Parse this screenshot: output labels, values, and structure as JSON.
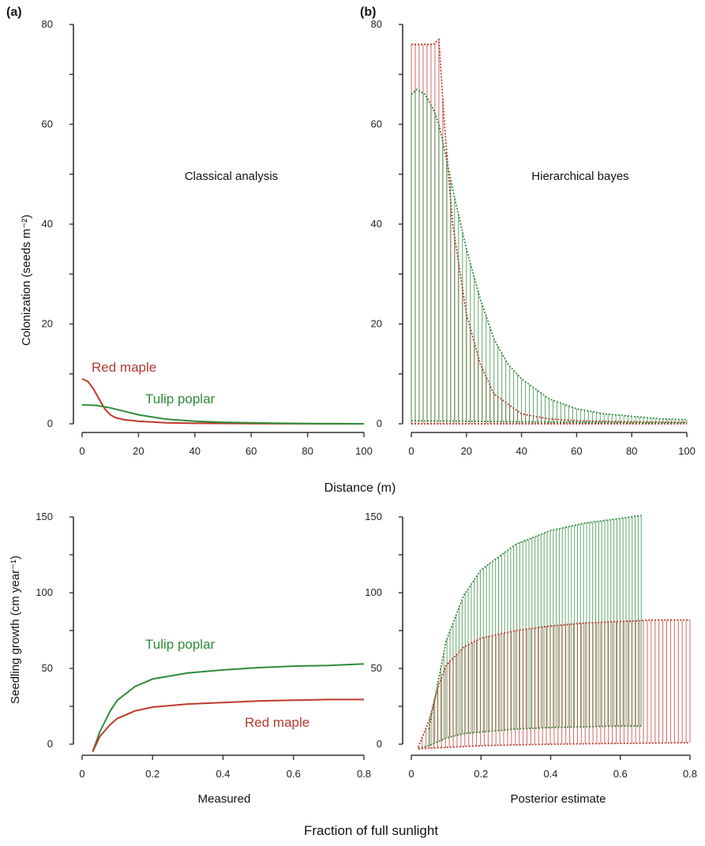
{
  "figure": {
    "shared_xlabel_top": "Distance (m)",
    "shared_xlabel_bottom": "Fraction of full sunlight",
    "colors": {
      "red_maple": "#c0392b",
      "tulip_poplar": "#2e8b3a",
      "axis": "#333333"
    }
  },
  "chart_data": [
    {
      "id": "a",
      "type": "line",
      "panel_label": "(a)",
      "annotation": "Classical analysis",
      "ylabel": "Colonization (seeds m⁻²)",
      "xlim": [
        0,
        100
      ],
      "ylim": [
        0,
        80
      ],
      "xticks": [
        0,
        20,
        40,
        60,
        80,
        100
      ],
      "yticks": [
        0,
        20,
        40,
        60,
        80
      ],
      "series": [
        {
          "name": "Red maple",
          "color": "#c0392b",
          "x": [
            0,
            2,
            4,
            6,
            8,
            10,
            12,
            15,
            20,
            30,
            40,
            60,
            80,
            100
          ],
          "y": [
            9,
            8.5,
            7,
            5,
            3,
            1.8,
            1.2,
            0.8,
            0.5,
            0.2,
            0.1,
            0.05,
            0.02,
            0
          ]
        },
        {
          "name": "Tulip poplar",
          "color": "#2e8b3a",
          "x": [
            0,
            5,
            10,
            15,
            20,
            30,
            40,
            50,
            60,
            70,
            80,
            100
          ],
          "y": [
            3.8,
            3.7,
            3.2,
            2.5,
            1.8,
            0.9,
            0.5,
            0.3,
            0.2,
            0.1,
            0.05,
            0
          ]
        }
      ]
    },
    {
      "id": "b",
      "type": "line",
      "panel_label": "(b)",
      "annotation": "Hierarchical bayes",
      "xlim": [
        0,
        100
      ],
      "ylim": [
        0,
        80
      ],
      "xticks": [
        0,
        20,
        40,
        60,
        80,
        100
      ],
      "yticks": [
        0,
        20,
        40,
        60,
        80
      ],
      "series": [
        {
          "name": "Red maple",
          "color": "#c0392b",
          "upper": {
            "x": [
              0,
              2,
              4,
              6,
              8,
              10,
              12,
              15,
              20,
              25,
              30,
              40,
              50,
              60,
              80,
              100
            ],
            "y": [
              76,
              76,
              76,
              76,
              76,
              77,
              60,
              40,
              22,
              12,
              6,
              2,
              1,
              0.6,
              0.4,
              0.3
            ]
          },
          "lower": {
            "x": [
              0,
              100
            ],
            "y": [
              0,
              0
            ]
          }
        },
        {
          "name": "Tulip poplar",
          "color": "#2e8b3a",
          "upper": {
            "x": [
              0,
              2,
              5,
              8,
              10,
              12,
              15,
              20,
              25,
              30,
              35,
              40,
              50,
              60,
              70,
              80,
              90,
              100
            ],
            "y": [
              66,
              67,
              66,
              63,
              60,
              55,
              47,
              35,
              25,
              17,
              12,
              9,
              5,
              3,
              2,
              1.5,
              1,
              0.8
            ]
          },
          "lower": {
            "x": [
              0,
              20,
              40,
              60,
              80,
              100
            ],
            "y": [
              0.6,
              0.5,
              0.4,
              0.3,
              0.2,
              0.1
            ]
          }
        }
      ]
    },
    {
      "id": "c",
      "type": "line",
      "panel_label": "",
      "subtitle_below": "Measured",
      "ylabel": "Seedling growth (cm year⁻¹)",
      "xlim": [
        0,
        0.8
      ],
      "ylim": [
        0,
        150
      ],
      "xticks": [
        0,
        0.2,
        0.4,
        0.6,
        0.8
      ],
      "yticks": [
        0,
        50,
        100,
        150
      ],
      "series": [
        {
          "name": "Tulip poplar",
          "color": "#2e8b3a",
          "x": [
            0.03,
            0.05,
            0.08,
            0.1,
            0.15,
            0.2,
            0.3,
            0.4,
            0.5,
            0.6,
            0.7,
            0.8
          ],
          "y": [
            -5,
            8,
            22,
            29,
            38,
            43,
            47,
            49,
            50.5,
            51.5,
            52,
            53
          ]
        },
        {
          "name": "Red maple",
          "color": "#c0392b",
          "x": [
            0.03,
            0.05,
            0.08,
            0.1,
            0.15,
            0.2,
            0.3,
            0.4,
            0.5,
            0.6,
            0.7,
            0.8
          ],
          "y": [
            -5,
            5,
            13,
            17,
            22,
            24.5,
            26.5,
            27.5,
            28.5,
            29,
            29.5,
            29.5
          ]
        }
      ]
    },
    {
      "id": "d",
      "type": "line",
      "panel_label": "",
      "subtitle_below": "Posterior estimate",
      "xlim": [
        0,
        0.8
      ],
      "ylim": [
        0,
        150
      ],
      "xticks": [
        0,
        0.2,
        0.4,
        0.6,
        0.8
      ],
      "yticks": [
        0,
        50,
        100,
        150
      ],
      "series": [
        {
          "name": "Tulip poplar",
          "color": "#2e8b3a",
          "upper": {
            "x": [
              0.05,
              0.08,
              0.1,
              0.15,
              0.2,
              0.3,
              0.4,
              0.5,
              0.6,
              0.66
            ],
            "y": [
              10,
              45,
              68,
              98,
              115,
              132,
              141,
              146,
              149,
              151
            ]
          },
          "lower": {
            "x": [
              0.02,
              0.05,
              0.08,
              0.1,
              0.15,
              0.2,
              0.3,
              0.4,
              0.5,
              0.6,
              0.66
            ],
            "y": [
              -3,
              -1,
              2,
              4,
              7,
              8,
              10,
              11,
              11.5,
              12,
              12
            ]
          }
        },
        {
          "name": "Red maple",
          "color": "#c0392b",
          "upper": {
            "x": [
              0.02,
              0.05,
              0.08,
              0.1,
              0.15,
              0.2,
              0.3,
              0.4,
              0.5,
              0.6,
              0.7,
              0.8
            ],
            "y": [
              -2,
              15,
              40,
              52,
              64,
              70,
              75,
              78,
              80,
              81,
              82,
              82
            ]
          },
          "lower": {
            "x": [
              0.02,
              0.2,
              0.4,
              0.6,
              0.8
            ],
            "y": [
              -3,
              -1,
              0,
              0.5,
              1
            ]
          }
        }
      ]
    }
  ]
}
